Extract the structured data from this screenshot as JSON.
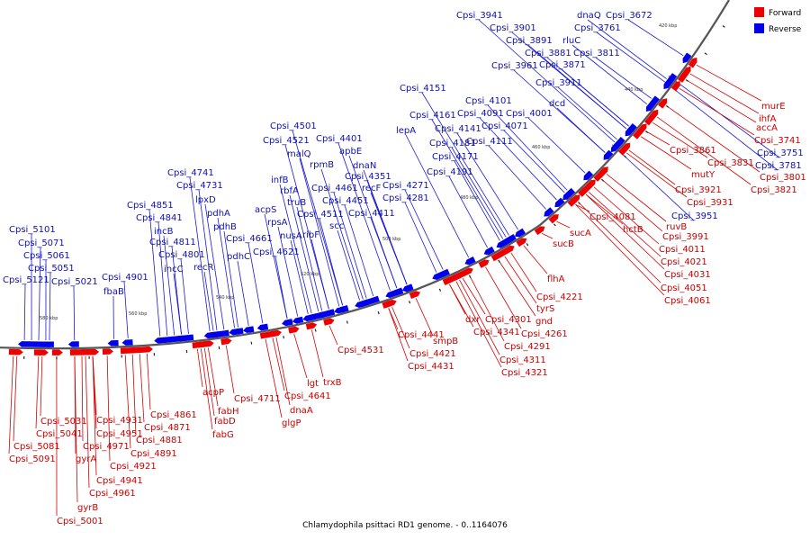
{
  "caption": "Chlamydophila psittaci RD1 genome. - 0..1164076",
  "legend": [
    {
      "label": "Forward",
      "color": "#ee0000"
    },
    {
      "label": "Reverse",
      "color": "#0000ee"
    }
  ],
  "strand_colors": {
    "forward": "#ee0000",
    "reverse": "#0000ee",
    "forward_line": "#d40000",
    "reverse_line": "#1a1ad4"
  },
  "ticks": [
    "420 kbp",
    "440 kbp",
    "460 kbp",
    "480 kbp",
    "500 kbp",
    "520 kbp",
    "540 kbp",
    "560 kbp",
    "580 kbp"
  ],
  "forward_labels": [
    {
      "id": "f1",
      "text": "murE"
    },
    {
      "id": "f2",
      "text": "ihfA"
    },
    {
      "id": "f3",
      "text": "accA"
    },
    {
      "id": "f4",
      "text": "Cpsi_3741"
    },
    {
      "id": "f5",
      "text": "Cpsi_3861"
    },
    {
      "id": "f6",
      "text": "Cpsi_3831"
    },
    {
      "id": "f7",
      "text": "mutY"
    },
    {
      "id": "f8",
      "text": "Cpsi_3801"
    },
    {
      "id": "f9",
      "text": "Cpsi_3821"
    },
    {
      "id": "f10",
      "text": "Cpsi_3921"
    },
    {
      "id": "f11",
      "text": "Cpsi_3931"
    },
    {
      "id": "f12",
      "text": "ruvB"
    },
    {
      "id": "f13",
      "text": "Cpsi_3991"
    },
    {
      "id": "f14",
      "text": "hctB"
    },
    {
      "id": "f15",
      "text": "Cpsi_4081"
    },
    {
      "id": "f16",
      "text": "Cpsi_4011"
    },
    {
      "id": "f17",
      "text": "Cpsi_4021"
    },
    {
      "id": "f18",
      "text": "Cpsi_4031"
    },
    {
      "id": "f19",
      "text": "Cpsi_4051"
    },
    {
      "id": "f20",
      "text": "Cpsi_4061"
    },
    {
      "id": "f21",
      "text": "sucA"
    },
    {
      "id": "f22",
      "text": "sucB"
    },
    {
      "id": "f23",
      "text": "flhA"
    },
    {
      "id": "f24",
      "text": "Cpsi_4221"
    },
    {
      "id": "f25",
      "text": "tyrS"
    },
    {
      "id": "f26",
      "text": "gnd"
    },
    {
      "id": "f27",
      "text": "Cpsi_4261"
    },
    {
      "id": "f28",
      "text": "Cpsi_4301"
    },
    {
      "id": "f29",
      "text": "Cpsi_4291"
    },
    {
      "id": "f30",
      "text": "dxr"
    },
    {
      "id": "f31",
      "text": "Cpsi_4341"
    },
    {
      "id": "f32",
      "text": "Cpsi_4311"
    },
    {
      "id": "f33",
      "text": "Cpsi_4321"
    },
    {
      "id": "f34",
      "text": "Cpsi_4441"
    },
    {
      "id": "f35",
      "text": "smpB"
    },
    {
      "id": "f36",
      "text": "Cpsi_4421"
    },
    {
      "id": "f37",
      "text": "Cpsi_4431"
    },
    {
      "id": "f38",
      "text": "Cpsi_4531"
    },
    {
      "id": "f39",
      "text": "trxB"
    },
    {
      "id": "f40",
      "text": "lgt"
    },
    {
      "id": "f41",
      "text": "Cpsi_4641"
    },
    {
      "id": "f42",
      "text": "dnaA"
    },
    {
      "id": "f43",
      "text": "Cpsi_4711"
    },
    {
      "id": "f44",
      "text": "glgP"
    },
    {
      "id": "f45",
      "text": "acpP"
    },
    {
      "id": "f46",
      "text": "fabH"
    },
    {
      "id": "f47",
      "text": "fabD"
    },
    {
      "id": "f48",
      "text": "fabG"
    },
    {
      "id": "f49",
      "text": "Cpsi_4861"
    },
    {
      "id": "f50",
      "text": "Cpsi_4871"
    },
    {
      "id": "f51",
      "text": "Cpsi_4881"
    },
    {
      "id": "f52",
      "text": "Cpsi_4891"
    },
    {
      "id": "f53",
      "text": "Cpsi_4931"
    },
    {
      "id": "f54",
      "text": "Cpsi_4951"
    },
    {
      "id": "f55",
      "text": "Cpsi_4971"
    },
    {
      "id": "f56",
      "text": "Cpsi_4921"
    },
    {
      "id": "f57",
      "text": "Cpsi_4941"
    },
    {
      "id": "f58",
      "text": "Cpsi_4961"
    },
    {
      "id": "f59",
      "text": "gyrB"
    },
    {
      "id": "f60",
      "text": "Cpsi_5001"
    },
    {
      "id": "f61",
      "text": "gyrA"
    },
    {
      "id": "f62",
      "text": "Cpsi_5031"
    },
    {
      "id": "f63",
      "text": "Cpsi_5041"
    },
    {
      "id": "f64",
      "text": "Cpsi_5081"
    },
    {
      "id": "f65",
      "text": "Cpsi_5091"
    }
  ],
  "reverse_labels": [
    {
      "id": "r1",
      "text": "Cpsi_3941"
    },
    {
      "id": "r2",
      "text": "Cpsi_3901"
    },
    {
      "id": "r3",
      "text": "Cpsi_3891"
    },
    {
      "id": "r4",
      "text": "Cpsi_3881"
    },
    {
      "id": "r5",
      "text": "Cpsi_3961"
    },
    {
      "id": "r6",
      "text": "Cpsi_3871"
    },
    {
      "id": "r7",
      "text": "Cpsi_3911"
    },
    {
      "id": "r8",
      "text": "dnaQ"
    },
    {
      "id": "r9",
      "text": "Cpsi_3672"
    },
    {
      "id": "r10",
      "text": "Cpsi_3761"
    },
    {
      "id": "r11",
      "text": "rluC"
    },
    {
      "id": "r12",
      "text": "Cpsi_3811"
    },
    {
      "id": "r13",
      "text": "Cpsi_3751"
    },
    {
      "id": "r14",
      "text": "Cpsi_3781"
    },
    {
      "id": "r15",
      "text": "Cpsi_3951"
    },
    {
      "id": "r16",
      "text": "Cpsi_4151"
    },
    {
      "id": "r17",
      "text": "Cpsi_4101"
    },
    {
      "id": "r18",
      "text": "Cpsi_4161"
    },
    {
      "id": "r19",
      "text": "Cpsi_4091"
    },
    {
      "id": "r20",
      "text": "Cpsi_4001"
    },
    {
      "id": "r21",
      "text": "dcd"
    },
    {
      "id": "r22",
      "text": "lepA"
    },
    {
      "id": "r23",
      "text": "Cpsi_4141"
    },
    {
      "id": "r24",
      "text": "Cpsi_4071"
    },
    {
      "id": "r25",
      "text": "Cpsi_4181"
    },
    {
      "id": "r26",
      "text": "Cpsi_4111"
    },
    {
      "id": "r27",
      "text": "Cpsi_4171"
    },
    {
      "id": "r28",
      "text": "Cpsi_4191"
    },
    {
      "id": "r29",
      "text": "Cpsi_4501"
    },
    {
      "id": "r30",
      "text": "Cpsi_4521"
    },
    {
      "id": "r31",
      "text": "Cpsi_4401"
    },
    {
      "id": "r32",
      "text": "malQ"
    },
    {
      "id": "r33",
      "text": "apbE"
    },
    {
      "id": "r34",
      "text": "rpmB"
    },
    {
      "id": "r35",
      "text": "dnaN"
    },
    {
      "id": "r36",
      "text": "Cpsi_4351"
    },
    {
      "id": "r37",
      "text": "infB"
    },
    {
      "id": "r38",
      "text": "rbfA"
    },
    {
      "id": "r39",
      "text": "Cpsi_4461"
    },
    {
      "id": "r40",
      "text": "recF"
    },
    {
      "id": "r41",
      "text": "Cpsi_4271"
    },
    {
      "id": "r42",
      "text": "truB"
    },
    {
      "id": "r43",
      "text": "Cpsi_4451"
    },
    {
      "id": "r44",
      "text": "Cpsi_4281"
    },
    {
      "id": "r45",
      "text": "Cpsi_4511"
    },
    {
      "id": "r46",
      "text": "Cpsi_4411"
    },
    {
      "id": "r47",
      "text": "acpS"
    },
    {
      "id": "r48",
      "text": "rpsA"
    },
    {
      "id": "r49",
      "text": "scc"
    },
    {
      "id": "r50",
      "text": "nusA"
    },
    {
      "id": "r51",
      "text": "ribF"
    },
    {
      "id": "r52",
      "text": "Cpsi_4661"
    },
    {
      "id": "r53",
      "text": "Cpsi_4621"
    },
    {
      "id": "r54",
      "text": "Cpsi_4741"
    },
    {
      "id": "r55",
      "text": "Cpsi_4731"
    },
    {
      "id": "r56",
      "text": "lpxD"
    },
    {
      "id": "r57",
      "text": "pdhA"
    },
    {
      "id": "r58",
      "text": "pdhB"
    },
    {
      "id": "r59",
      "text": "pdhC"
    },
    {
      "id": "r60",
      "text": "recR"
    },
    {
      "id": "r61",
      "text": "Cpsi_4851"
    },
    {
      "id": "r62",
      "text": "Cpsi_4841"
    },
    {
      "id": "r63",
      "text": "incB"
    },
    {
      "id": "r64",
      "text": "Cpsi_4811"
    },
    {
      "id": "r65",
      "text": "Cpsi_4801"
    },
    {
      "id": "r66",
      "text": "incC"
    },
    {
      "id": "r67",
      "text": "Cpsi_4901"
    },
    {
      "id": "r68",
      "text": "fbaB"
    },
    {
      "id": "r69",
      "text": "Cpsi_5101"
    },
    {
      "id": "r70",
      "text": "Cpsi_5071"
    },
    {
      "id": "r71",
      "text": "Cpsi_5061"
    },
    {
      "id": "r72",
      "text": "Cpsi_5051"
    },
    {
      "id": "r73",
      "text": "Cpsi_5121"
    },
    {
      "id": "r74",
      "text": "Cpsi_5021"
    }
  ]
}
